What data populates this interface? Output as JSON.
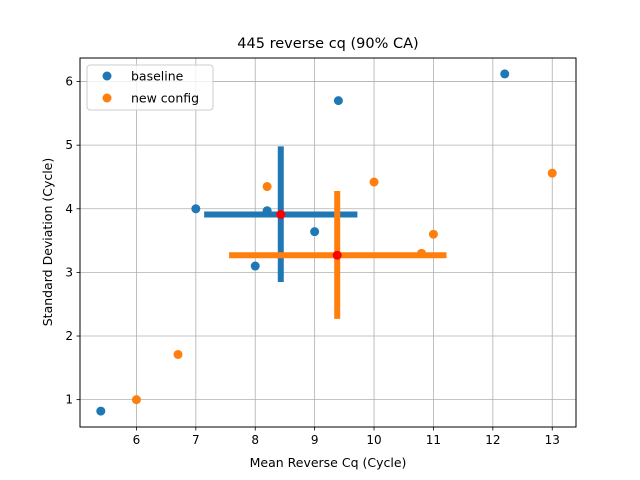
{
  "chart_data": {
    "type": "scatter",
    "title": "445 reverse cq (90% CA)",
    "xlabel": "Mean Reverse Cq (Cycle)",
    "ylabel": "Standard Deviation (Cycle)",
    "xlim": [
      5.05,
      13.4
    ],
    "ylim": [
      0.57,
      6.37
    ],
    "xticks": [
      6,
      7,
      8,
      9,
      10,
      11,
      12,
      13
    ],
    "yticks": [
      1,
      2,
      3,
      4,
      5,
      6
    ],
    "grid": true,
    "legend_position": "upper-left",
    "series": [
      {
        "name": "baseline",
        "color": "#1f77b4",
        "points": [
          [
            5.4,
            0.82
          ],
          [
            7.0,
            4.0
          ],
          [
            8.0,
            3.1
          ],
          [
            8.2,
            3.97
          ],
          [
            9.0,
            3.64
          ],
          [
            9.4,
            5.7
          ],
          [
            12.2,
            6.12
          ]
        ],
        "center": [
          8.43,
          3.91
        ],
        "x_interval": [
          7.14,
          9.72
        ],
        "y_interval": [
          2.85,
          4.98
        ]
      },
      {
        "name": "new config",
        "color": "#ff7f0e",
        "points": [
          [
            6.0,
            1.0
          ],
          [
            6.7,
            1.71
          ],
          [
            8.2,
            4.35
          ],
          [
            10.0,
            4.42
          ],
          [
            10.8,
            3.3
          ],
          [
            11.0,
            3.6
          ],
          [
            13.0,
            4.56
          ]
        ],
        "center": [
          9.38,
          3.27
        ],
        "x_interval": [
          7.56,
          11.22
        ],
        "y_interval": [
          2.27,
          4.28
        ]
      }
    ],
    "center_marker_color": "#ff0000"
  }
}
